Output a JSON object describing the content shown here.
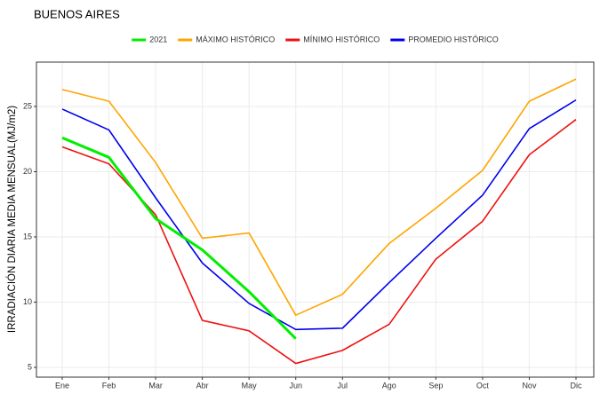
{
  "chart_data": {
    "type": "line",
    "title": "BUENOS AIRES",
    "y_label": "IRRADIACIÓN DIARIA MEDIA MENSUAL(MJ/m2)",
    "categories": [
      "Ene",
      "Feb",
      "Mar",
      "Abr",
      "May",
      "Jun",
      "Jul",
      "Ago",
      "Sep",
      "Oct",
      "Nov",
      "Dic"
    ],
    "series": [
      {
        "name": "2021",
        "color": "#00ee00",
        "values": [
          22.6,
          21.1,
          16.4,
          14.0,
          10.8,
          7.2,
          null,
          null,
          null,
          null,
          null,
          null
        ]
      },
      {
        "name": "MÁXIMO HISTÓRICO",
        "color": "#ffa500",
        "values": [
          26.3,
          25.4,
          20.7,
          14.9,
          15.3,
          9.0,
          10.6,
          14.5,
          17.2,
          20.1,
          25.4,
          27.1
        ]
      },
      {
        "name": "MÍNIMO HISTÓRICO",
        "color": "#ee1111",
        "values": [
          21.9,
          20.6,
          16.7,
          8.6,
          7.8,
          5.3,
          6.3,
          8.3,
          13.3,
          16.2,
          21.3,
          24.0
        ]
      },
      {
        "name": "PROMEDIO HISTÓRICO",
        "color": "#0000ee",
        "values": [
          24.8,
          23.2,
          18.0,
          13.0,
          9.9,
          7.9,
          8.0,
          11.5,
          14.9,
          18.2,
          23.3,
          25.5
        ]
      }
    ],
    "ylim": [
      4.25,
      28.4
    ],
    "yticks": [
      5,
      10,
      15,
      20,
      25
    ],
    "grid": true,
    "legend": "top"
  }
}
